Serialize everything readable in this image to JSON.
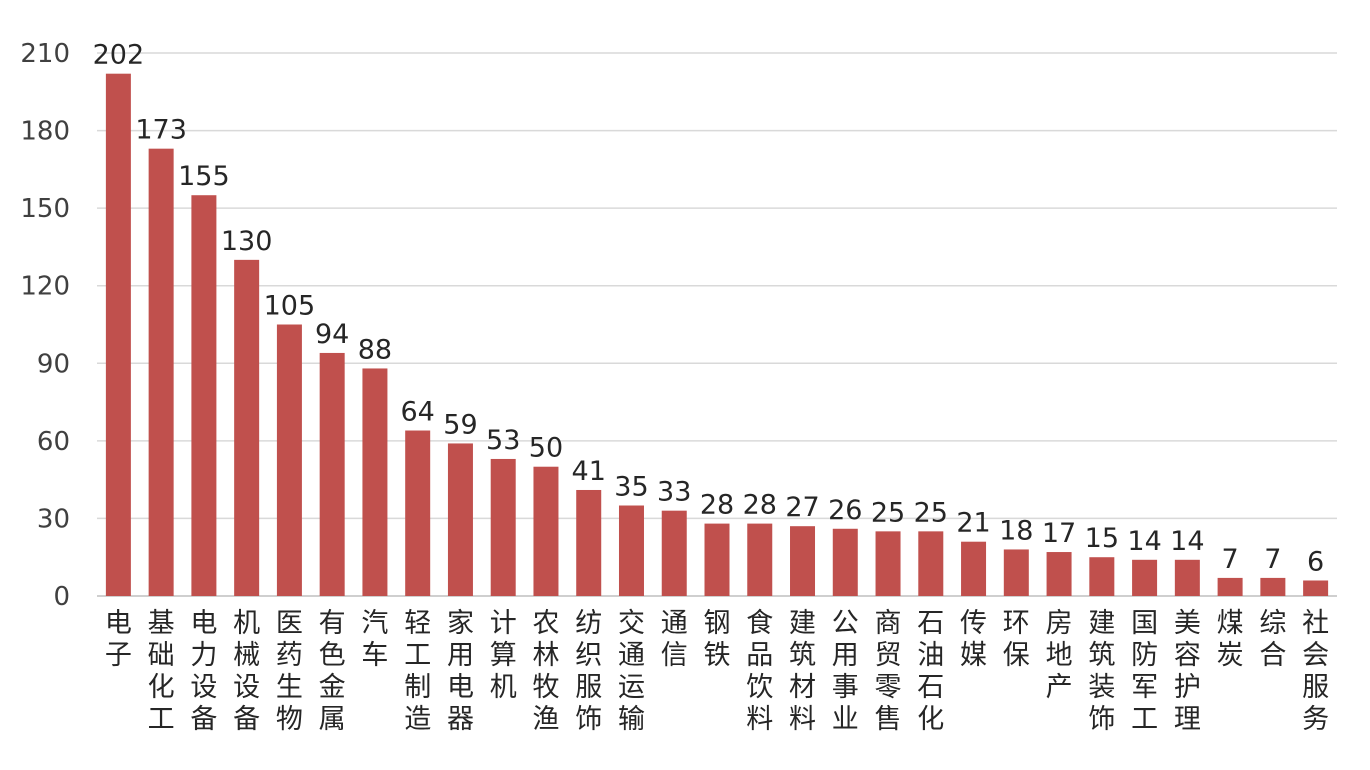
{
  "chart_data": {
    "type": "bar",
    "title": "",
    "xlabel": "",
    "ylabel": "",
    "ylim": [
      0,
      210
    ],
    "yticks": [
      0,
      30,
      60,
      90,
      120,
      150,
      180,
      210
    ],
    "grid": true,
    "legend": "none",
    "bar_color": "#c0504d",
    "categories": [
      "电子",
      "基础化工",
      "电力设备",
      "机械设备",
      "医药生物",
      "有色金属",
      "汽车",
      "轻工制造",
      "家用电器",
      "计算机",
      "农林牧渔",
      "纺织服饰",
      "交通运输",
      "通信",
      "钢铁",
      "食品饮料",
      "建筑材料",
      "公用事业",
      "商贸零售",
      "石油石化",
      "传媒",
      "环保",
      "房地产",
      "建筑装饰",
      "国防军工",
      "美容护理",
      "煤炭",
      "综合",
      "社会服务"
    ],
    "values": [
      202,
      173,
      155,
      130,
      105,
      94,
      88,
      64,
      59,
      53,
      50,
      41,
      35,
      33,
      28,
      28,
      27,
      26,
      25,
      25,
      21,
      18,
      17,
      15,
      14,
      14,
      7,
      7,
      6
    ]
  }
}
